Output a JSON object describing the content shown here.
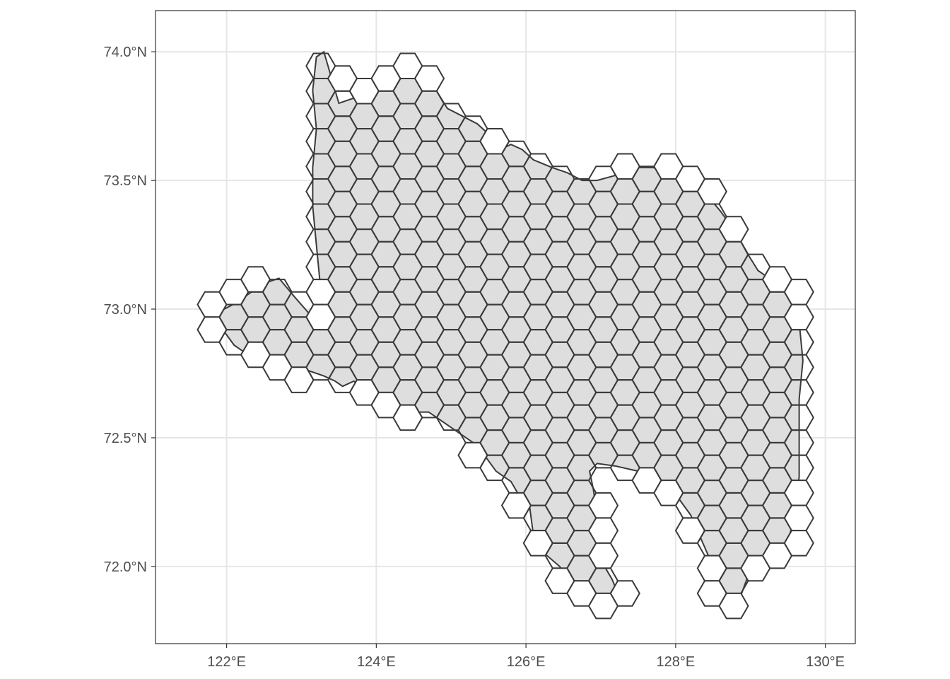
{
  "map": {
    "x_ticks": [
      {
        "value": 122,
        "label": "122°E"
      },
      {
        "value": 124,
        "label": "124°E"
      },
      {
        "value": 126,
        "label": "126°E"
      },
      {
        "value": 128,
        "label": "128°E"
      },
      {
        "value": 130,
        "label": "130°E"
      }
    ],
    "y_ticks": [
      {
        "value": 72.0,
        "label": "72.0°N"
      },
      {
        "value": 72.5,
        "label": "72.5°N"
      },
      {
        "value": 73.0,
        "label": "73.0°N"
      },
      {
        "value": 73.5,
        "label": "73.5°N"
      },
      {
        "value": 74.0,
        "label": "74.0°N"
      }
    ],
    "x_range": [
      121.05,
      130.4
    ],
    "y_range": [
      71.7,
      74.16
    ],
    "grid": true,
    "colors": {
      "land_fill": "#dedede",
      "outline": "#3a3a3a",
      "grid": "#e6e6e6",
      "panel_border": "#333333",
      "hex_fill": "#ffffff"
    },
    "region_outline": [
      [
        121.75,
        72.96
      ],
      [
        121.95,
        72.92
      ],
      [
        122.1,
        72.86
      ],
      [
        122.25,
        72.83
      ],
      [
        122.4,
        72.85
      ],
      [
        122.55,
        72.82
      ],
      [
        122.7,
        72.78
      ],
      [
        122.9,
        72.76
      ],
      [
        123.1,
        72.76
      ],
      [
        123.3,
        72.74
      ],
      [
        123.45,
        72.72
      ],
      [
        123.55,
        72.7
      ],
      [
        123.7,
        72.72
      ],
      [
        123.9,
        72.68
      ],
      [
        124.1,
        72.65
      ],
      [
        124.3,
        72.62
      ],
      [
        124.5,
        72.6
      ],
      [
        124.7,
        72.6
      ],
      [
        124.9,
        72.56
      ],
      [
        125.1,
        72.52
      ],
      [
        125.3,
        72.48
      ],
      [
        125.45,
        72.43
      ],
      [
        125.6,
        72.37
      ],
      [
        125.8,
        72.33
      ],
      [
        125.9,
        72.28
      ],
      [
        126.05,
        72.23
      ],
      [
        126.1,
        72.12
      ],
      [
        126.25,
        72.05
      ],
      [
        126.45,
        72.0
      ],
      [
        126.6,
        71.94
      ],
      [
        126.75,
        71.9
      ],
      [
        126.95,
        71.86
      ],
      [
        127.15,
        71.85
      ],
      [
        127.25,
        71.88
      ],
      [
        127.15,
        71.95
      ],
      [
        127.05,
        72.0
      ],
      [
        127.0,
        72.08
      ],
      [
        126.95,
        72.2
      ],
      [
        126.9,
        72.3
      ],
      [
        126.85,
        72.37
      ],
      [
        126.95,
        72.4
      ],
      [
        127.2,
        72.39
      ],
      [
        127.5,
        72.37
      ],
      [
        127.75,
        72.33
      ],
      [
        128.0,
        72.28
      ],
      [
        128.2,
        72.2
      ],
      [
        128.35,
        72.1
      ],
      [
        128.5,
        72.0
      ],
      [
        128.6,
        71.9
      ],
      [
        128.7,
        71.84
      ],
      [
        128.85,
        71.87
      ],
      [
        128.95,
        71.95
      ],
      [
        129.05,
        72.02
      ],
      [
        129.2,
        72.04
      ],
      [
        129.35,
        72.06
      ],
      [
        129.5,
        72.1
      ],
      [
        129.6,
        72.2
      ],
      [
        129.65,
        72.35
      ],
      [
        129.65,
        72.5
      ],
      [
        129.65,
        72.65
      ],
      [
        129.7,
        72.8
      ],
      [
        129.65,
        72.95
      ],
      [
        129.55,
        73.05
      ],
      [
        129.4,
        73.08
      ],
      [
        129.25,
        73.12
      ],
      [
        129.1,
        73.15
      ],
      [
        128.95,
        73.22
      ],
      [
        128.8,
        73.3
      ],
      [
        128.6,
        73.38
      ],
      [
        128.4,
        73.45
      ],
      [
        128.2,
        73.5
      ],
      [
        127.95,
        73.53
      ],
      [
        127.7,
        73.55
      ],
      [
        127.45,
        73.55
      ],
      [
        127.2,
        73.52
      ],
      [
        126.95,
        73.5
      ],
      [
        126.75,
        73.5
      ],
      [
        126.55,
        73.53
      ],
      [
        126.35,
        73.55
      ],
      [
        126.1,
        73.58
      ],
      [
        125.95,
        73.62
      ],
      [
        125.8,
        73.64
      ],
      [
        125.65,
        73.62
      ],
      [
        125.5,
        73.68
      ],
      [
        125.35,
        73.72
      ],
      [
        125.15,
        73.75
      ],
      [
        124.95,
        73.78
      ],
      [
        124.8,
        73.85
      ],
      [
        124.6,
        73.9
      ],
      [
        124.35,
        73.9
      ],
      [
        124.15,
        73.86
      ],
      [
        123.9,
        73.84
      ],
      [
        123.7,
        73.82
      ],
      [
        123.5,
        73.8
      ],
      [
        123.4,
        73.9
      ],
      [
        123.3,
        74.0
      ],
      [
        123.2,
        73.98
      ],
      [
        123.15,
        73.85
      ],
      [
        123.2,
        73.7
      ],
      [
        123.15,
        73.55
      ],
      [
        123.15,
        73.4
      ],
      [
        123.2,
        73.25
      ],
      [
        123.25,
        73.1
      ],
      [
        123.3,
        72.98
      ],
      [
        123.2,
        72.95
      ],
      [
        123.05,
        73.0
      ],
      [
        122.9,
        73.05
      ],
      [
        122.7,
        73.12
      ],
      [
        122.5,
        73.1
      ],
      [
        122.3,
        73.06
      ],
      [
        122.1,
        73.02
      ],
      [
        121.9,
        72.99
      ],
      [
        121.75,
        72.96
      ]
    ]
  }
}
